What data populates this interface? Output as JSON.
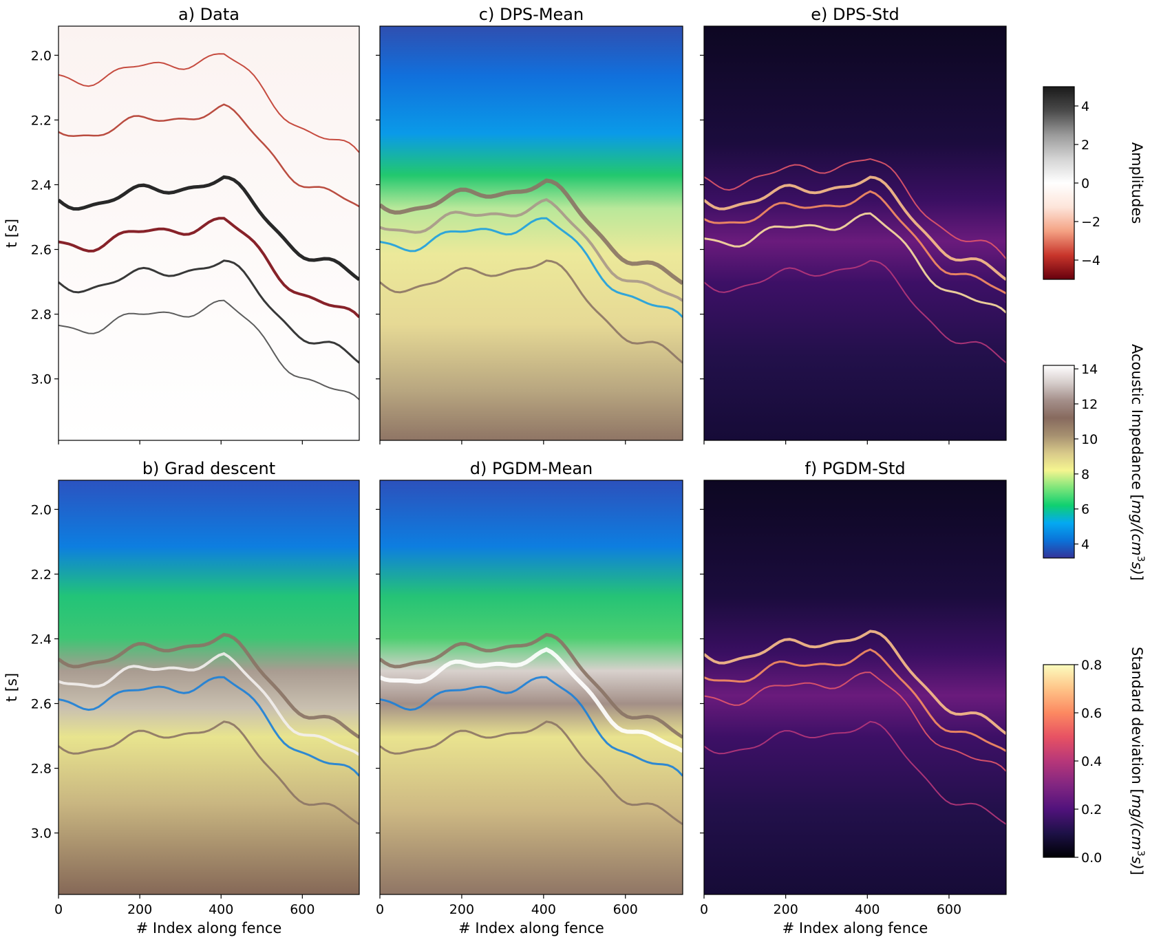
{
  "chart_data": [
    {
      "type": "heatmap",
      "id": "a",
      "title": "a) Data",
      "variable": "seismic amplitude",
      "ylabel": "t [s]",
      "xlabel": "",
      "xlim": [
        0,
        740
      ],
      "ylim": [
        3.19,
        1.91
      ],
      "xticks": [
        0,
        200,
        400,
        600
      ],
      "yticks": [
        2.0,
        2.2,
        2.4,
        2.6,
        2.8,
        3.0
      ],
      "colorbar": "amp"
    },
    {
      "type": "heatmap",
      "id": "c",
      "title": "c) DPS-Mean",
      "variable": "acoustic impedance",
      "ylabel": "",
      "xlabel": "",
      "xlim": [
        0,
        740
      ],
      "ylim": [
        3.19,
        1.91
      ],
      "xticks": [
        0,
        200,
        400,
        600
      ],
      "yticks": [
        2.0,
        2.2,
        2.4,
        2.6,
        2.8,
        3.0
      ],
      "colorbar": "ai"
    },
    {
      "type": "heatmap",
      "id": "e",
      "title": "e) DPS-Std",
      "variable": "standard deviation",
      "ylabel": "",
      "xlabel": "",
      "xlim": [
        0,
        740
      ],
      "ylim": [
        3.19,
        1.91
      ],
      "xticks": [
        0,
        200,
        400,
        600
      ],
      "yticks": [
        2.0,
        2.2,
        2.4,
        2.6,
        2.8,
        3.0
      ],
      "colorbar": "std"
    },
    {
      "type": "heatmap",
      "id": "b",
      "title": "b) Grad descent",
      "variable": "acoustic impedance",
      "ylabel": "t [s]",
      "xlabel": "# Index along fence",
      "xlim": [
        0,
        740
      ],
      "ylim": [
        3.19,
        1.91
      ],
      "xticks": [
        0,
        200,
        400,
        600
      ],
      "yticks": [
        2.0,
        2.2,
        2.4,
        2.6,
        2.8,
        3.0
      ],
      "colorbar": "ai"
    },
    {
      "type": "heatmap",
      "id": "d",
      "title": "d) PGDM-Mean",
      "variable": "acoustic impedance",
      "ylabel": "",
      "xlabel": "# Index along fence",
      "xlim": [
        0,
        740
      ],
      "ylim": [
        3.19,
        1.91
      ],
      "xticks": [
        0,
        200,
        400,
        600
      ],
      "yticks": [
        2.0,
        2.2,
        2.4,
        2.6,
        2.8,
        3.0
      ],
      "colorbar": "ai"
    },
    {
      "type": "heatmap",
      "id": "f",
      "title": "f) PGDM-Std",
      "variable": "standard deviation",
      "ylabel": "",
      "xlabel": "# Index along fence",
      "xlim": [
        0,
        740
      ],
      "ylim": [
        3.19,
        1.91
      ],
      "xticks": [
        0,
        200,
        400,
        600
      ],
      "yticks": [
        2.0,
        2.2,
        2.4,
        2.6,
        2.8,
        3.0
      ],
      "colorbar": "std"
    }
  ],
  "colorbars": [
    {
      "id": "amp",
      "label": "Amplitudes",
      "range": [
        -5,
        5
      ],
      "ticks": [
        4,
        2,
        0,
        -2,
        -4
      ],
      "tick_labels": [
        "4",
        "2",
        "0",
        "−2",
        "−4"
      ],
      "colors": [
        "#67000d",
        "#c8352b",
        "#f4a183",
        "#fde5da",
        "#ffffff",
        "#d4d4d4",
        "#9a9a9a",
        "#4a4a4a",
        "#1a1a1a"
      ]
    },
    {
      "id": "ai",
      "label_html": "Acoustic Impedance [mg/(cm³s)]",
      "label_prefix": "Acoustic Impedance [",
      "label_math": "mg/(cm",
      "label_sup": "3",
      "label_suffix_math": "s)",
      "label_close": "]",
      "range": [
        3.2,
        14.2
      ],
      "ticks": [
        14,
        12,
        10,
        8,
        6,
        4
      ],
      "tick_labels": [
        "14",
        "12",
        "10",
        "8",
        "6",
        "4"
      ],
      "colors": [
        "#333399",
        "#0b72d8",
        "#04a9f2",
        "#0fd070",
        "#7de57a",
        "#f5f590",
        "#d8c98a",
        "#a69070",
        "#876a5e",
        "#a48f8a",
        "#d6cdcb",
        "#ffffff"
      ]
    },
    {
      "id": "std",
      "label_prefix": "Standard deviation [",
      "label_math": "mg/(cm",
      "label_sup": "3",
      "label_suffix_math": "s)",
      "label_close": "]",
      "range": [
        0.0,
        0.8
      ],
      "ticks": [
        0.8,
        0.6,
        0.4,
        0.2,
        0.0
      ],
      "tick_labels": [
        "0.8",
        "0.6",
        "0.4",
        "0.2",
        "0.0"
      ],
      "colors": [
        "#000004",
        "#1d1147",
        "#51127c",
        "#822681",
        "#b73779",
        "#e75263",
        "#fc8961",
        "#fec488",
        "#fcfdbf"
      ]
    }
  ]
}
